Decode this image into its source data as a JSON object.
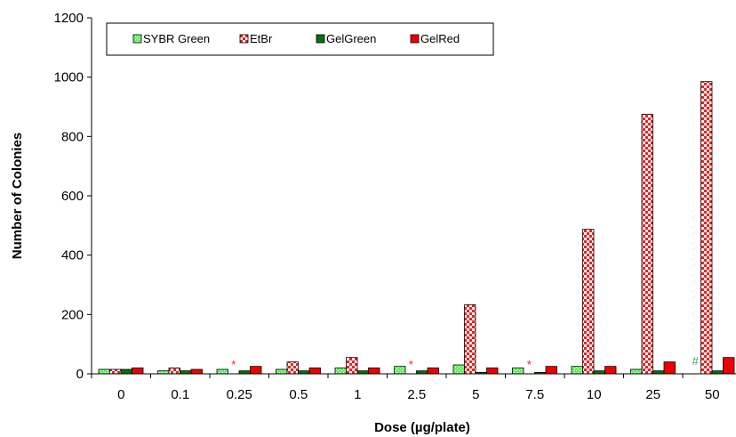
{
  "chart_data": {
    "type": "bar",
    "title": "",
    "xlabel": "Dose (µg/plate)",
    "ylabel": "Number of Colonies",
    "ylim": [
      0,
      1200
    ],
    "yticks": [
      0,
      200,
      400,
      600,
      800,
      1000,
      1200
    ],
    "grid": false,
    "legend_position": "top-left",
    "categories": [
      "0",
      "0.1",
      "0.25",
      "0.5",
      "1",
      "2.5",
      "5",
      "7.5",
      "10",
      "25",
      "50"
    ],
    "series": [
      {
        "name": "SYBR Green",
        "values": [
          15,
          10,
          15,
          15,
          20,
          25,
          30,
          20,
          25,
          15,
          null
        ],
        "color": "#66ee66",
        "pattern": "dots-green"
      },
      {
        "name": "EtBr",
        "values": [
          15,
          20,
          null,
          40,
          55,
          null,
          233,
          null,
          487,
          875,
          985
        ],
        "color": "#ee2222",
        "pattern": "checker-red"
      },
      {
        "name": "GelGreen",
        "values": [
          15,
          10,
          10,
          10,
          10,
          10,
          5,
          5,
          10,
          10,
          10
        ],
        "color": "#0a6e0a",
        "pattern": "solid"
      },
      {
        "name": "GelRed",
        "values": [
          20,
          15,
          25,
          20,
          20,
          20,
          20,
          25,
          25,
          40,
          55
        ],
        "color": "#ee0000",
        "pattern": "solid"
      }
    ],
    "annotations": [
      {
        "category": "0.25",
        "series": "EtBr",
        "text": "*",
        "color": "#ee2222"
      },
      {
        "category": "2.5",
        "series": "EtBr",
        "text": "*",
        "color": "#ee2222"
      },
      {
        "category": "7.5",
        "series": "EtBr",
        "text": "*",
        "color": "#ee2222"
      },
      {
        "category": "50",
        "series": "SYBR Green",
        "text": "#",
        "color": "#33aa55"
      }
    ]
  }
}
